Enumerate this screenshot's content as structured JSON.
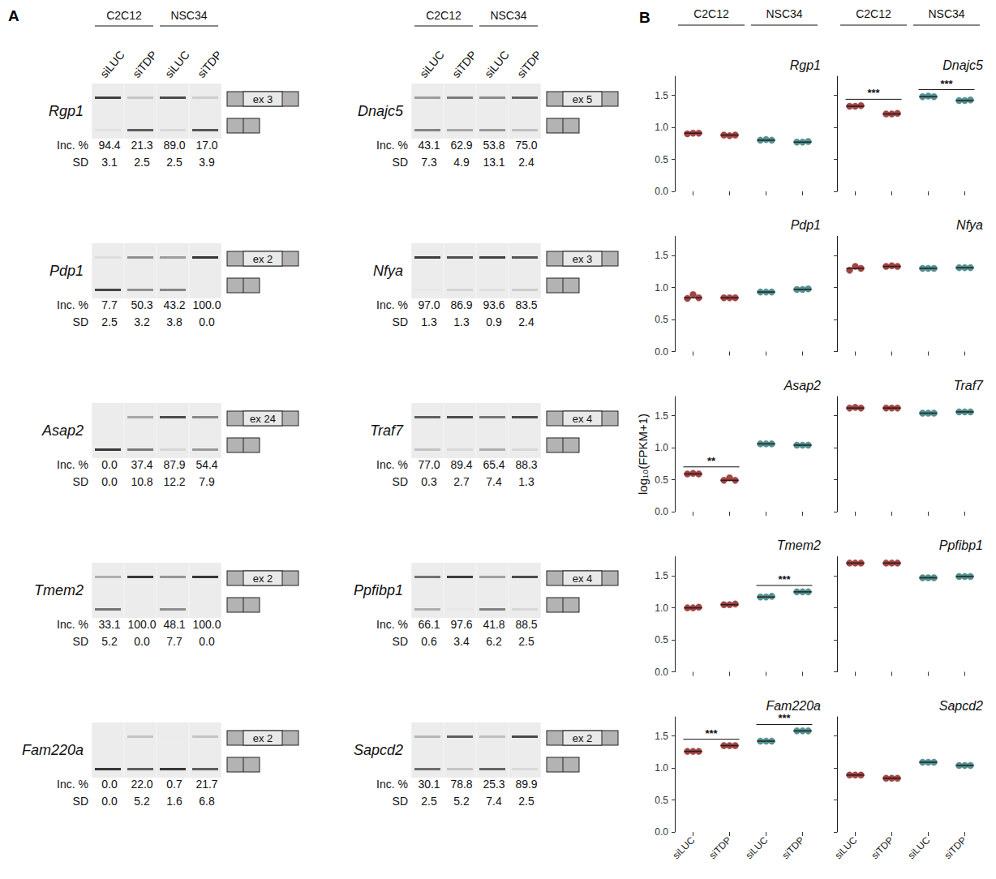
{
  "panel_a": {
    "letter": "A",
    "column_heads": [
      "C2C12",
      "NSC34"
    ],
    "lanes": [
      "siLUC",
      "siTDP",
      "siLUC",
      "siTDP"
    ],
    "row_labels": [
      "Inc. %",
      "SD"
    ],
    "columns": [
      [
        {
          "name": "Rgp1",
          "exon": "ex 3",
          "inc": [
            "94.4",
            "21.3",
            "89.0",
            "17.0"
          ],
          "sd": [
            "3.1",
            "2.5",
            "2.5",
            "3.9"
          ]
        },
        {
          "name": "Pdp1",
          "exon": "ex 2",
          "inc": [
            "7.7",
            "50.3",
            "43.2",
            "100.0"
          ],
          "sd": [
            "2.5",
            "3.2",
            "3.8",
            "0.0"
          ]
        },
        {
          "name": "Asap2",
          "exon": "ex 24",
          "inc": [
            "0.0",
            "37.4",
            "87.9",
            "54.4"
          ],
          "sd": [
            "0.0",
            "10.8",
            "12.2",
            "7.9"
          ]
        },
        {
          "name": "Tmem2",
          "exon": "ex 2",
          "inc": [
            "33.1",
            "100.0",
            "48.1",
            "100.0"
          ],
          "sd": [
            "5.2",
            "0.0",
            "7.7",
            "0.0"
          ]
        },
        {
          "name": "Fam220a",
          "exon": "ex 2",
          "inc": [
            "0.0",
            "22.0",
            "0.7",
            "21.7"
          ],
          "sd": [
            "0.0",
            "5.2",
            "1.6",
            "6.8"
          ]
        }
      ],
      [
        {
          "name": "Dnajc5",
          "exon": "ex 5",
          "inc": [
            "43.1",
            "62.9",
            "53.8",
            "75.0"
          ],
          "sd": [
            "7.3",
            "4.9",
            "13.1",
            "2.4"
          ]
        },
        {
          "name": "Nfya",
          "exon": "ex 3",
          "inc": [
            "97.0",
            "86.9",
            "93.6",
            "83.5"
          ],
          "sd": [
            "1.3",
            "1.3",
            "0.9",
            "2.4"
          ]
        },
        {
          "name": "Traf7",
          "exon": "ex 4",
          "inc": [
            "77.0",
            "89.4",
            "65.4",
            "88.3"
          ],
          "sd": [
            "0.3",
            "2.7",
            "7.4",
            "1.3"
          ]
        },
        {
          "name": "Ppfibp1",
          "exon": "ex 4",
          "inc": [
            "66.1",
            "97.6",
            "41.8",
            "88.5"
          ],
          "sd": [
            "0.6",
            "3.4",
            "6.2",
            "2.5"
          ]
        },
        {
          "name": "Sapcd2",
          "exon": "ex 2",
          "inc": [
            "30.1",
            "78.8",
            "25.3",
            "89.9"
          ],
          "sd": [
            "2.5",
            "5.2",
            "7.4",
            "2.5"
          ]
        }
      ]
    ]
  },
  "panel_b": {
    "letter": "B",
    "column_heads": [
      "C2C12",
      "NSC34",
      "C2C12",
      "NSC34"
    ],
    "y_title": "log₁₀(FPKM+1)"
  },
  "chart_data": [
    {
      "type": "scatter",
      "title": "Rgp1",
      "categories": [
        "siLUC",
        "siTDP",
        "siLUC",
        "siTDP"
      ],
      "ylim": [
        0,
        1.8
      ],
      "yticks": [
        {
          "value": 0,
          "label": "0.0"
        },
        {
          "value": 0.5,
          "label": "0.5"
        },
        {
          "value": 1,
          "label": "1.0"
        },
        {
          "value": 1.5,
          "label": "1.5"
        }
      ],
      "tick_labels": "y",
      "series": [
        {
          "name": "C2C12",
          "color": "#9e3b3b",
          "values": [
            [
              0.9,
              0.91,
              0.91
            ],
            [
              0.88,
              0.87,
              0.88
            ],
            null,
            null
          ],
          "medians": [
            0.91,
            0.88,
            null,
            null
          ]
        },
        {
          "name": "NSC34",
          "color": "#4b8a8a",
          "values": [
            null,
            null,
            [
              0.8,
              0.81,
              0.8
            ],
            [
              0.77,
              0.77,
              0.78
            ]
          ],
          "medians": [
            null,
            null,
            0.8,
            0.77
          ]
        }
      ]
    },
    {
      "type": "scatter",
      "title": "Dnajc5",
      "categories": [
        "siLUC",
        "siTDP",
        "siLUC",
        "siTDP"
      ],
      "ylim": [
        0,
        1.8
      ],
      "yticks": [
        {
          "value": 0,
          "label": "0.0"
        },
        {
          "value": 0.5,
          "label": "0.5"
        },
        {
          "value": 1,
          "label": "1.0"
        },
        {
          "value": 1.5,
          "label": "1.5"
        }
      ],
      "tick_labels": false,
      "series": [
        {
          "name": "C2C12",
          "color": "#9e3b3b",
          "values": [
            [
              1.33,
              1.33,
              1.34
            ],
            [
              1.21,
              1.21,
              1.22
            ],
            null,
            null
          ],
          "medians": [
            1.33,
            1.21,
            null,
            null
          ]
        },
        {
          "name": "NSC34",
          "color": "#4b8a8a",
          "values": [
            null,
            null,
            [
              1.48,
              1.49,
              1.48
            ],
            [
              1.42,
              1.42,
              1.43
            ]
          ],
          "medians": [
            null,
            null,
            1.48,
            1.42
          ]
        }
      ],
      "significance": [
        {
          "label": "***",
          "between": [
            0,
            1
          ]
        },
        {
          "label": "***",
          "between": [
            2,
            3
          ]
        }
      ]
    },
    {
      "type": "scatter",
      "title": "Pdp1",
      "categories": [
        "siLUC",
        "siTDP",
        "siLUC",
        "siTDP"
      ],
      "ylim": [
        0,
        1.8
      ],
      "yticks": [
        {
          "value": 0,
          "label": "0.0"
        },
        {
          "value": 0.5,
          "label": "0.5"
        },
        {
          "value": 1,
          "label": "1.0"
        },
        {
          "value": 1.5,
          "label": "1.5"
        }
      ],
      "tick_labels": "y",
      "series": [
        {
          "name": "C2C12",
          "color": "#9e3b3b",
          "values": [
            [
              0.83,
              0.89,
              0.84
            ],
            [
              0.84,
              0.84,
              0.84
            ],
            null,
            null
          ],
          "medians": [
            0.84,
            0.84,
            null,
            null
          ]
        },
        {
          "name": "NSC34",
          "color": "#4b8a8a",
          "values": [
            null,
            null,
            [
              0.93,
              0.93,
              0.93
            ],
            [
              0.97,
              0.97,
              0.98
            ]
          ],
          "medians": [
            null,
            null,
            0.93,
            0.97
          ]
        }
      ]
    },
    {
      "type": "scatter",
      "title": "Nfya",
      "categories": [
        "siLUC",
        "siTDP",
        "siLUC",
        "siTDP"
      ],
      "ylim": [
        0,
        1.8
      ],
      "yticks": [
        {
          "value": 0,
          "label": "0.0"
        },
        {
          "value": 0.5,
          "label": "0.5"
        },
        {
          "value": 1,
          "label": "1.0"
        },
        {
          "value": 1.5,
          "label": "1.5"
        }
      ],
      "tick_labels": false,
      "series": [
        {
          "name": "C2C12",
          "color": "#9e3b3b",
          "values": [
            [
              1.27,
              1.33,
              1.3
            ],
            [
              1.33,
              1.34,
              1.33
            ],
            null,
            null
          ],
          "medians": [
            1.3,
            1.33,
            null,
            null
          ]
        },
        {
          "name": "NSC34",
          "color": "#4b8a8a",
          "values": [
            null,
            null,
            [
              1.3,
              1.3,
              1.3
            ],
            [
              1.31,
              1.31,
              1.31
            ]
          ],
          "medians": [
            null,
            null,
            1.3,
            1.31
          ]
        }
      ]
    },
    {
      "type": "scatter",
      "title": "Asap2",
      "categories": [
        "siLUC",
        "siTDP",
        "siLUC",
        "siTDP"
      ],
      "ylim": [
        0,
        1.8
      ],
      "yticks": [
        {
          "value": 0,
          "label": "0.0"
        },
        {
          "value": 0.5,
          "label": "0.5"
        },
        {
          "value": 1,
          "label": "1.0"
        },
        {
          "value": 1.5,
          "label": "1.5"
        }
      ],
      "tick_labels": "y",
      "series": [
        {
          "name": "C2C12",
          "color": "#9e3b3b",
          "values": [
            [
              0.59,
              0.6,
              0.59
            ],
            [
              0.49,
              0.53,
              0.49
            ],
            null,
            null
          ],
          "medians": [
            0.59,
            0.49,
            null,
            null
          ]
        },
        {
          "name": "NSC34",
          "color": "#4b8a8a",
          "values": [
            null,
            null,
            [
              1.06,
              1.06,
              1.06
            ],
            [
              1.04,
              1.04,
              1.04
            ]
          ],
          "medians": [
            null,
            null,
            1.06,
            1.04
          ]
        }
      ],
      "significance": [
        {
          "label": "**",
          "between": [
            0,
            1
          ]
        }
      ]
    },
    {
      "type": "scatter",
      "title": "Traf7",
      "categories": [
        "siLUC",
        "siTDP",
        "siLUC",
        "siTDP"
      ],
      "ylim": [
        0,
        1.8
      ],
      "yticks": [
        {
          "value": 0,
          "label": "0.0"
        },
        {
          "value": 0.5,
          "label": "0.5"
        },
        {
          "value": 1,
          "label": "1.0"
        },
        {
          "value": 1.5,
          "label": "1.5"
        }
      ],
      "tick_labels": false,
      "series": [
        {
          "name": "C2C12",
          "color": "#9e3b3b",
          "values": [
            [
              1.62,
              1.63,
              1.62
            ],
            [
              1.62,
              1.62,
              1.62
            ],
            null,
            null
          ],
          "medians": [
            1.62,
            1.62,
            null,
            null
          ]
        },
        {
          "name": "NSC34",
          "color": "#4b8a8a",
          "values": [
            null,
            null,
            [
              1.54,
              1.54,
              1.54
            ],
            [
              1.56,
              1.56,
              1.56
            ]
          ],
          "medians": [
            null,
            null,
            1.54,
            1.56
          ]
        }
      ]
    },
    {
      "type": "scatter",
      "title": "Tmem2",
      "categories": [
        "siLUC",
        "siTDP",
        "siLUC",
        "siTDP"
      ],
      "ylim": [
        0,
        1.8
      ],
      "yticks": [
        {
          "value": 0,
          "label": "0.0"
        },
        {
          "value": 0.5,
          "label": "0.5"
        },
        {
          "value": 1,
          "label": "1.0"
        },
        {
          "value": 1.5,
          "label": "1.5"
        }
      ],
      "tick_labels": "y",
      "series": [
        {
          "name": "C2C12",
          "color": "#9e3b3b",
          "values": [
            [
              1.0,
              1.0,
              1.01
            ],
            [
              1.05,
              1.05,
              1.06
            ],
            null,
            null
          ],
          "medians": [
            1.0,
            1.05,
            null,
            null
          ]
        },
        {
          "name": "NSC34",
          "color": "#4b8a8a",
          "values": [
            null,
            null,
            [
              1.17,
              1.17,
              1.18
            ],
            [
              1.25,
              1.25,
              1.25
            ]
          ],
          "medians": [
            null,
            null,
            1.17,
            1.25
          ]
        }
      ],
      "significance": [
        {
          "label": "***",
          "between": [
            2,
            3
          ]
        }
      ]
    },
    {
      "type": "scatter",
      "title": "Ppfibp1",
      "categories": [
        "siLUC",
        "siTDP",
        "siLUC",
        "siTDP"
      ],
      "ylim": [
        0,
        1.8
      ],
      "yticks": [
        {
          "value": 0,
          "label": "0.0"
        },
        {
          "value": 0.5,
          "label": "0.5"
        },
        {
          "value": 1,
          "label": "1.0"
        },
        {
          "value": 1.5,
          "label": "1.5"
        }
      ],
      "tick_labels": false,
      "series": [
        {
          "name": "C2C12",
          "color": "#9e3b3b",
          "values": [
            [
              1.7,
              1.7,
              1.7
            ],
            [
              1.7,
              1.7,
              1.7
            ],
            null,
            null
          ],
          "medians": [
            1.7,
            1.7,
            null,
            null
          ]
        },
        {
          "name": "NSC34",
          "color": "#4b8a8a",
          "values": [
            null,
            null,
            [
              1.47,
              1.47,
              1.47
            ],
            [
              1.49,
              1.49,
              1.49
            ]
          ],
          "medians": [
            null,
            null,
            1.47,
            1.49
          ]
        }
      ]
    },
    {
      "type": "scatter",
      "title": "Fam220a",
      "categories": [
        "siLUC",
        "siTDP",
        "siLUC",
        "siTDP"
      ],
      "ylim": [
        0,
        1.8
      ],
      "yticks": [
        {
          "value": 0,
          "label": "0.0"
        },
        {
          "value": 0.5,
          "label": "0.5"
        },
        {
          "value": 1,
          "label": "1.0"
        },
        {
          "value": 1.5,
          "label": "1.5"
        }
      ],
      "tick_labels": true,
      "series": [
        {
          "name": "C2C12",
          "color": "#9e3b3b",
          "values": [
            [
              1.26,
              1.26,
              1.26
            ],
            [
              1.35,
              1.35,
              1.35
            ],
            null,
            null
          ],
          "medians": [
            1.26,
            1.35,
            null,
            null
          ]
        },
        {
          "name": "NSC34",
          "color": "#4b8a8a",
          "values": [
            null,
            null,
            [
              1.42,
              1.42,
              1.42
            ],
            [
              1.58,
              1.58,
              1.58
            ]
          ],
          "medians": [
            null,
            null,
            1.42,
            1.58
          ]
        }
      ],
      "significance": [
        {
          "label": "***",
          "between": [
            0,
            1
          ]
        },
        {
          "label": "***",
          "between": [
            2,
            3
          ]
        }
      ]
    },
    {
      "type": "scatter",
      "title": "Sapcd2",
      "categories": [
        "siLUC",
        "siTDP",
        "siLUC",
        "siTDP"
      ],
      "ylim": [
        0,
        1.8
      ],
      "yticks": [
        {
          "value": 0,
          "label": "0.0"
        },
        {
          "value": 0.5,
          "label": "0.5"
        },
        {
          "value": 1,
          "label": "1.0"
        },
        {
          "value": 1.5,
          "label": "1.5"
        }
      ],
      "tick_labels": "x",
      "series": [
        {
          "name": "C2C12",
          "color": "#9e3b3b",
          "values": [
            [
              0.89,
              0.89,
              0.89
            ],
            [
              0.84,
              0.84,
              0.84
            ],
            null,
            null
          ],
          "medians": [
            0.89,
            0.84,
            null,
            null
          ]
        },
        {
          "name": "NSC34",
          "color": "#4b8a8a",
          "values": [
            null,
            null,
            [
              1.09,
              1.09,
              1.09
            ],
            [
              1.04,
              1.04,
              1.04
            ]
          ],
          "medians": [
            null,
            null,
            1.09,
            1.04
          ]
        }
      ]
    }
  ]
}
